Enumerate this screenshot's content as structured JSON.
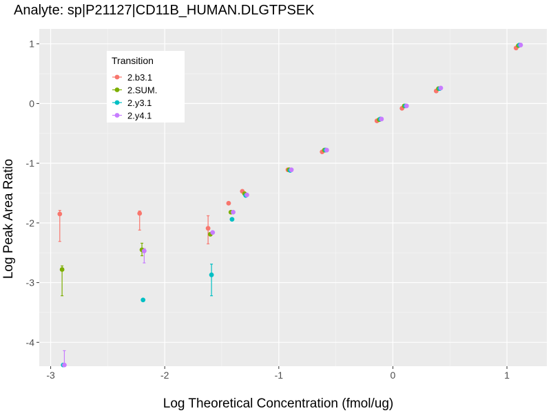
{
  "chart_data": {
    "type": "scatter",
    "title": "Analyte: sp|P21127|CD11B_HUMAN.DLGTPSEK",
    "xlabel": "Log Theoretical Concentration (fmol/ug)",
    "ylabel": "Log Peak Area Ratio",
    "xlim": [
      -3.1,
      1.35
    ],
    "ylim": [
      -4.4,
      1.25
    ],
    "x_ticks": [
      -3,
      -2,
      -1,
      0,
      1
    ],
    "y_ticks": [
      -4,
      -3,
      -2,
      -1,
      0,
      1
    ],
    "x_tick_labels": [
      "-3",
      "-2",
      "-1",
      "0",
      "1"
    ],
    "y_tick_labels": [
      "-4",
      "-3",
      "-2",
      "-1",
      "0",
      "1"
    ],
    "grid": true,
    "legend": {
      "title": "Transition",
      "position": "top-left"
    },
    "series": [
      {
        "name": "2.b3.1",
        "color": "#f8766d",
        "points": [
          {
            "x": -2.92,
            "y": -1.85,
            "ymin": -2.31,
            "ymax": -1.79
          },
          {
            "x": -2.22,
            "y": -1.84,
            "ymin": -2.12,
            "ymax": -1.8
          },
          {
            "x": -1.62,
            "y": -2.09,
            "ymin": -2.35,
            "ymax": -1.88
          },
          {
            "x": -1.44,
            "y": -1.67
          },
          {
            "x": -1.32,
            "y": -1.47
          },
          {
            "x": -0.92,
            "y": -1.11
          },
          {
            "x": -0.62,
            "y": -0.81
          },
          {
            "x": -0.14,
            "y": -0.29
          },
          {
            "x": 0.08,
            "y": -0.08
          },
          {
            "x": 0.38,
            "y": 0.21
          },
          {
            "x": 1.08,
            "y": 0.93
          }
        ]
      },
      {
        "name": "2.SUM.",
        "color": "#7cae00",
        "points": [
          {
            "x": -2.9,
            "y": -2.78,
            "ymin": -3.22,
            "ymax": -2.72
          },
          {
            "x": -2.2,
            "y": -2.45,
            "ymin": -2.55,
            "ymax": -2.34
          },
          {
            "x": -1.6,
            "y": -2.19
          },
          {
            "x": -1.42,
            "y": -1.82
          },
          {
            "x": -1.3,
            "y": -1.51
          },
          {
            "x": -0.91,
            "y": -1.11
          },
          {
            "x": -0.6,
            "y": -0.78
          },
          {
            "x": -0.12,
            "y": -0.27
          },
          {
            "x": 0.1,
            "y": -0.04
          },
          {
            "x": 0.4,
            "y": 0.25
          },
          {
            "x": 1.1,
            "y": 0.97
          }
        ]
      },
      {
        "name": "2.y3.1",
        "color": "#00bfc4",
        "points": [
          {
            "x": -2.89,
            "y": -4.38
          },
          {
            "x": -2.19,
            "y": -3.29
          },
          {
            "x": -1.59,
            "y": -2.87,
            "ymin": -3.22,
            "ymax": -2.69
          },
          {
            "x": -1.41,
            "y": -1.94
          },
          {
            "x": -1.29,
            "y": -1.54
          },
          {
            "x": -0.9,
            "y": -1.12
          },
          {
            "x": -0.59,
            "y": -0.78
          },
          {
            "x": -0.11,
            "y": -0.26
          },
          {
            "x": 0.11,
            "y": -0.04
          },
          {
            "x": 0.41,
            "y": 0.25
          },
          {
            "x": 1.11,
            "y": 0.98
          }
        ]
      },
      {
        "name": "2.y4.1",
        "color": "#c77cff",
        "points": [
          {
            "x": -2.88,
            "y": -4.38,
            "ymin": -4.4,
            "ymax": -4.14
          },
          {
            "x": -2.18,
            "y": -2.47,
            "ymin": -2.67,
            "ymax": -2.43
          },
          {
            "x": -1.58,
            "y": -2.16
          },
          {
            "x": -1.4,
            "y": -1.82
          },
          {
            "x": -1.28,
            "y": -1.53
          },
          {
            "x": -0.89,
            "y": -1.11
          },
          {
            "x": -0.58,
            "y": -0.78
          },
          {
            "x": -0.1,
            "y": -0.26
          },
          {
            "x": 0.12,
            "y": -0.04
          },
          {
            "x": 0.42,
            "y": 0.26
          },
          {
            "x": 1.12,
            "y": 0.98
          }
        ]
      }
    ]
  }
}
